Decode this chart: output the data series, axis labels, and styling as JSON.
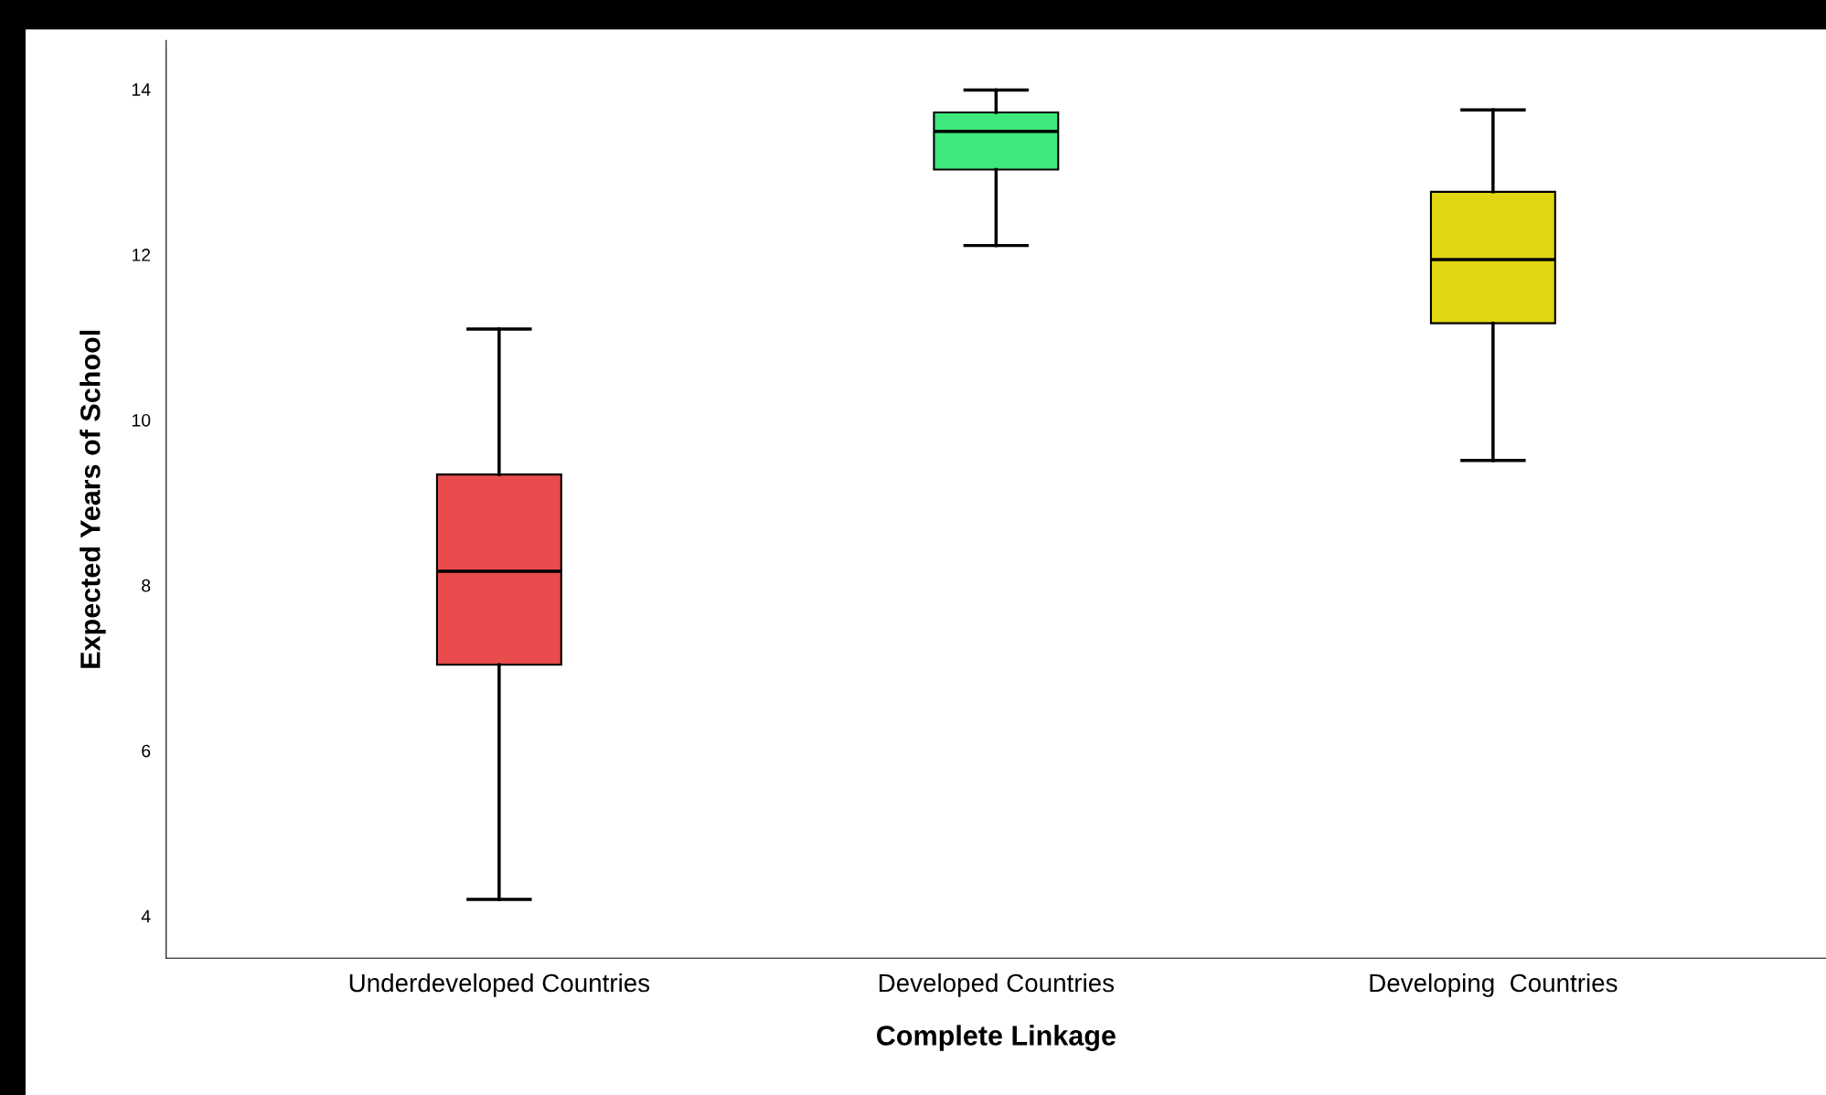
{
  "chart_data": {
    "type": "box",
    "xlabel": "Complete Linkage",
    "ylabel": "Expected Years of School",
    "categories": [
      "Underdeveloped Countries",
      "Developed Countries",
      "Developing  Countries"
    ],
    "boxes": [
      {
        "low": 4.2,
        "q1": 7.04,
        "median": 8.17,
        "q3": 9.34,
        "high": 11.1
      },
      {
        "low": 12.11,
        "q1": 13.03,
        "median": 13.49,
        "q3": 13.72,
        "high": 13.99
      },
      {
        "low": 9.51,
        "q1": 11.17,
        "median": 11.94,
        "q3": 12.76,
        "high": 13.75
      }
    ],
    "colors": [
      "#e84c4c",
      "#3de87c",
      "#e0d612"
    ],
    "ylim": [
      3.49,
      14.59
    ],
    "yticks": [
      4,
      6,
      8,
      10,
      12,
      14
    ],
    "grid": false,
    "legend": false
  }
}
